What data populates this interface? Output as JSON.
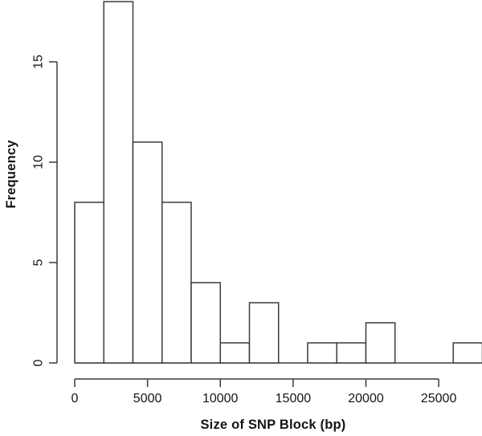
{
  "figure": {
    "background": "#ffffff"
  },
  "chart_data": {
    "type": "bar",
    "subtype": "histogram",
    "title": "",
    "xlabel": "Size of SNP Block (bp)",
    "ylabel": "Frequency",
    "bin_width_bp": 2000,
    "bin_edges": [
      0,
      2000,
      4000,
      6000,
      8000,
      10000,
      12000,
      14000,
      16000,
      18000,
      20000,
      22000,
      24000,
      26000,
      28000
    ],
    "counts": [
      8,
      18,
      11,
      8,
      4,
      1,
      3,
      0,
      1,
      1,
      2,
      0,
      0,
      1
    ],
    "x_tick_values": [
      0,
      5000,
      10000,
      15000,
      20000,
      25000
    ],
    "x_tick_labels": [
      "0",
      "5000",
      "10000",
      "15000",
      "20000",
      "25000"
    ],
    "y_tick_values": [
      0,
      5,
      10,
      15
    ],
    "y_tick_labels": [
      "0",
      "5",
      "10",
      "15"
    ],
    "xlim": [
      0,
      28000
    ],
    "ylim": [
      0,
      18
    ],
    "grid": "off",
    "legend": "none",
    "bar_fill": "#ffffff",
    "line_color": "#3c3c3c",
    "text_color": "#141414"
  }
}
